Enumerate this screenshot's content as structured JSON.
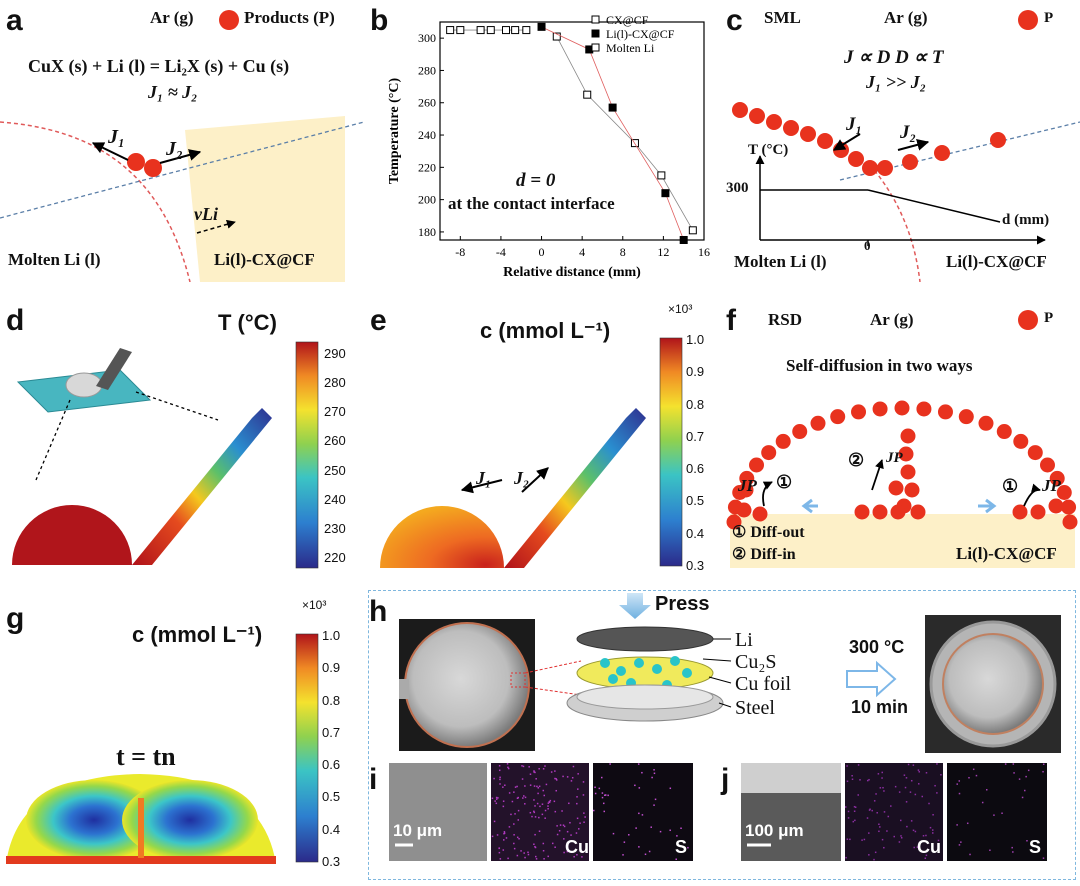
{
  "panel_a": {
    "label": "a",
    "gas": "Ar (g)",
    "legend": "Products (P)",
    "equation": "CuX (s) + Li (l) = Li₂X (s) + Cu (s)",
    "relation": "J₁ ≈ J₂",
    "j1": "J₁",
    "j2": "J₂",
    "v": "vLi",
    "left_region": "Molten Li (l)",
    "right_region": "Li(l)-CX@CF",
    "colors": {
      "particle": "#e8321e",
      "region": "#fdf0c8"
    }
  },
  "panel_b": {
    "label": "b",
    "annotation_line1": "d = 0",
    "annotation_line2": "at the contact interface"
  },
  "chart_data": {
    "type": "scatter",
    "xlabel": "Relative distance (mm)",
    "ylabel": "Temperature (°C)",
    "xlim": [
      -10,
      16
    ],
    "ylim": [
      175,
      310
    ],
    "xticks": [
      -8,
      -4,
      0,
      4,
      8,
      12,
      16
    ],
    "yticks": [
      180,
      200,
      220,
      240,
      260,
      280,
      300
    ],
    "legend_position": "top-right",
    "series": [
      {
        "name": "CX@CF",
        "marker": "open-square",
        "x": [
          1.5,
          4.5,
          9.2,
          11.8,
          14.9
        ],
        "y": [
          301,
          265,
          235,
          215,
          181
        ]
      },
      {
        "name": "Li(l)-CX@CF",
        "marker": "filled-square",
        "x": [
          0,
          4.7,
          7,
          12.2,
          14
        ],
        "y": [
          307,
          293,
          257,
          204,
          175
        ]
      },
      {
        "name": "Molten Li",
        "marker": "open-square",
        "x": [
          -9,
          -8,
          -6,
          -5,
          -3.5,
          -2.6,
          -1.5
        ],
        "y": [
          305,
          305,
          305,
          305,
          305,
          305,
          305
        ]
      }
    ]
  },
  "panel_c": {
    "label": "c",
    "mode": "SML",
    "gas": "Ar (g)",
    "legend": "P",
    "rel1": "J ∝ D   D ∝ T",
    "rel2": "J₁ >> J₂",
    "j1": "J₁",
    "j2": "J₂",
    "t_axis": "T (°C)",
    "t_value": "300",
    "d_axis": "d (mm)",
    "zero": "0",
    "left_region": "Molten Li (l)",
    "right_region": "Li(l)-CX@CF"
  },
  "panel_d": {
    "label": "d",
    "title": "T (°C)",
    "ticks": [
      "290",
      "280",
      "270",
      "260",
      "250",
      "240",
      "230",
      "220"
    ]
  },
  "panel_e": {
    "label": "e",
    "title": "c (mmol L⁻¹)",
    "exponent": "×10³",
    "ticks": [
      "1.0",
      "0.9",
      "0.8",
      "0.7",
      "0.6",
      "0.5",
      "0.4",
      "0.3"
    ],
    "j1": "J₁",
    "j2": "J₂"
  },
  "panel_f": {
    "label": "f",
    "mode": "RSD",
    "gas": "Ar (g)",
    "legend": "P",
    "subtitle": "Self-diffusion in two ways",
    "jp_left": "JP",
    "jp_mid": "JP",
    "jp_right": "JP",
    "n1": "①",
    "n2": "②",
    "key1": "① Diff-out",
    "key2": "② Diff-in",
    "region": "Li(l)-CX@CF"
  },
  "panel_g": {
    "label": "g",
    "title": "c (mmol L⁻¹)",
    "exponent": "×10³",
    "ticks": [
      "1.0",
      "0.9",
      "0.8",
      "0.7",
      "0.6",
      "0.5",
      "0.4",
      "0.3"
    ],
    "time": "t = tn"
  },
  "panel_h": {
    "label": "h",
    "press": "Press",
    "layers": [
      "Li",
      "Cu₂S",
      "Cu foil",
      "Steel"
    ],
    "condition1": "300 °C",
    "condition2": "10 min"
  },
  "panel_i": {
    "label": "i",
    "scale": "10 μm",
    "map1": "Cu",
    "map2": "S"
  },
  "panel_j": {
    "label": "j",
    "scale": "100 μm",
    "map1": "Cu",
    "map2": "S"
  }
}
